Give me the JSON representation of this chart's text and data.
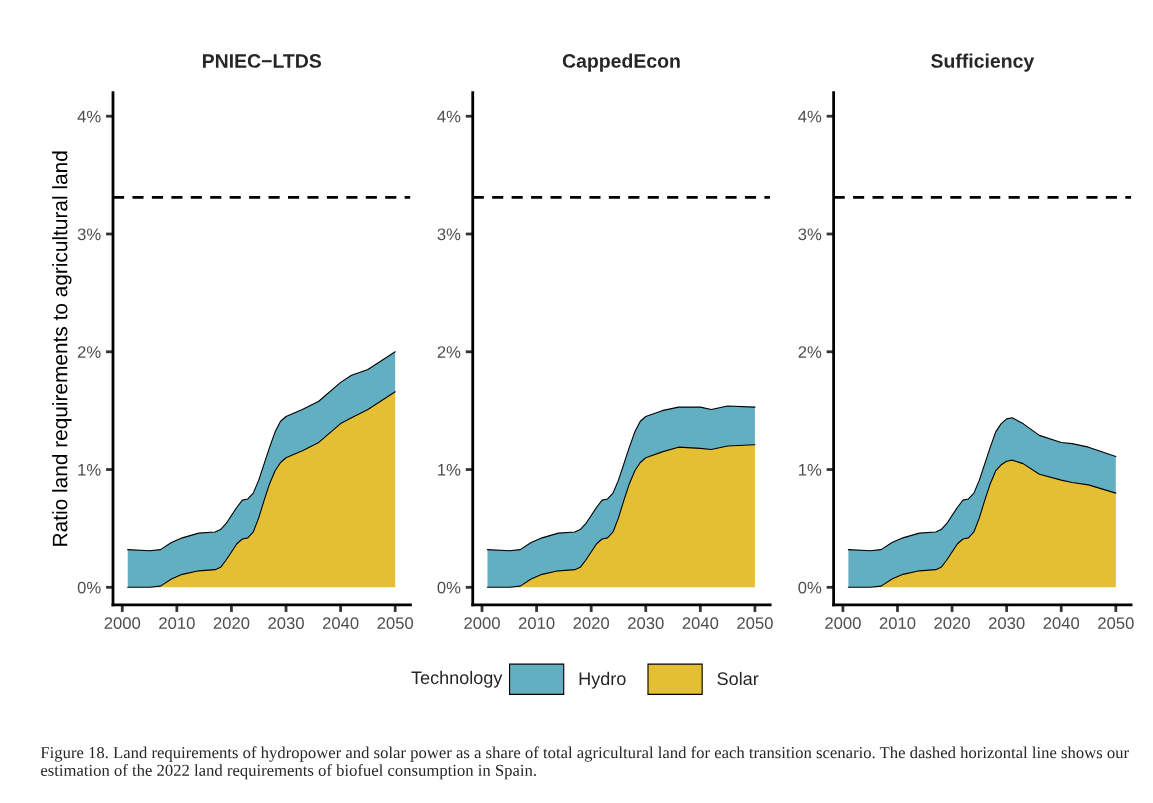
{
  "chart_data": [
    {
      "type": "area",
      "stacked": true,
      "title": "PNIEC−LTDS",
      "ylabel": "Ratio land requirements to agricultural land",
      "legend": "bottom",
      "legend_title": "Technology",
      "grid": false,
      "tick_labels": true,
      "x": [
        2001,
        2005,
        2007,
        2009,
        2011,
        2014,
        2017,
        2018,
        2019,
        2021,
        2022,
        2023,
        2024,
        2025,
        2026,
        2027,
        2028,
        2029,
        2030,
        2033,
        2036,
        2040,
        2042,
        2045,
        2050
      ],
      "series": [
        {
          "name": "Solar",
          "color": "#e5bf33",
          "values": [
            0,
            0,
            0.01,
            0.07,
            0.11,
            0.14,
            0.15,
            0.17,
            0.23,
            0.37,
            0.41,
            0.42,
            0.47,
            0.59,
            0.74,
            0.88,
            0.99,
            1.06,
            1.1,
            1.16,
            1.23,
            1.39,
            1.44,
            1.51,
            1.66
          ]
        },
        {
          "name": "Hydro",
          "color": "#62afc1",
          "values": [
            0.32,
            0.31,
            0.31,
            0.31,
            0.31,
            0.32,
            0.32,
            0.32,
            0.31,
            0.31,
            0.33,
            0.33,
            0.33,
            0.32,
            0.31,
            0.31,
            0.33,
            0.35,
            0.35,
            0.35,
            0.35,
            0.35,
            0.36,
            0.34,
            0.34
          ]
        }
      ],
      "xlim": [
        1998.3,
        2052.8
      ],
      "xticks": [
        2000,
        2010,
        2020,
        2030,
        2040,
        2050
      ],
      "ylim": [
        -0.15,
        4.2
      ],
      "yticks": [
        {
          "value": 0,
          "label": "0%"
        },
        {
          "value": 1,
          "label": "1%"
        },
        {
          "value": 2,
          "label": "2%"
        },
        {
          "value": 3,
          "label": "3%"
        },
        {
          "value": 4,
          "label": "4%"
        }
      ],
      "ref_lines": [
        {
          "axis": "y",
          "value": 3.31,
          "line_style": "dashed",
          "color": "#000000"
        }
      ],
      "annotations": [
        "Figure 18. Land requirements of hydropower and solar power as a share of total agricultural land for each transition scenario. The dashed horizontal line shows our estimation of the 2022 land requirements of biofuel consumption in Spain."
      ]
    },
    {
      "type": "area",
      "stacked": true,
      "title": "CappedEcon",
      "grid": false,
      "x": [
        2001,
        2005,
        2007,
        2009,
        2011,
        2014,
        2017,
        2018,
        2019,
        2021,
        2022,
        2023,
        2024,
        2025,
        2026,
        2027,
        2028,
        2029,
        2030,
        2033,
        2036,
        2040,
        2042,
        2045,
        2050
      ],
      "series": [
        {
          "color": "#e5bf33",
          "values": [
            0,
            0,
            0.01,
            0.07,
            0.11,
            0.14,
            0.15,
            0.17,
            0.23,
            0.37,
            0.41,
            0.42,
            0.47,
            0.59,
            0.74,
            0.88,
            0.99,
            1.06,
            1.1,
            1.15,
            1.19,
            1.18,
            1.17,
            1.2,
            1.21
          ]
        },
        {
          "color": "#62afc1",
          "values": [
            0.32,
            0.31,
            0.31,
            0.31,
            0.31,
            0.32,
            0.32,
            0.32,
            0.31,
            0.31,
            0.33,
            0.33,
            0.33,
            0.32,
            0.31,
            0.31,
            0.33,
            0.35,
            0.35,
            0.35,
            0.34,
            0.35,
            0.34,
            0.34,
            0.32
          ]
        }
      ],
      "xlim": [
        1998.3,
        2052.8
      ],
      "xticks": [
        2000,
        2010,
        2020,
        2030,
        2040,
        2050
      ],
      "ylim": [
        -0.15,
        4.2
      ],
      "yticks": [
        {
          "value": 0,
          "label": "0%"
        },
        {
          "value": 1,
          "label": "1%"
        },
        {
          "value": 2,
          "label": "2%"
        },
        {
          "value": 3,
          "label": "3%"
        },
        {
          "value": 4,
          "label": "4%"
        }
      ],
      "ref_lines": [
        {
          "axis": "y",
          "value": 3.31,
          "line_style": "dashed",
          "color": "#000000"
        }
      ]
    },
    {
      "type": "area",
      "stacked": true,
      "title": "Sufficiency",
      "grid": false,
      "x": [
        2001,
        2005,
        2007,
        2009,
        2011,
        2014,
        2017,
        2018,
        2019,
        2021,
        2022,
        2023,
        2024,
        2025,
        2026,
        2027,
        2028,
        2029,
        2030,
        2031,
        2033,
        2036,
        2040,
        2042,
        2045,
        2050
      ],
      "series": [
        {
          "color": "#e5bf33",
          "values": [
            0,
            0,
            0.01,
            0.07,
            0.11,
            0.14,
            0.15,
            0.17,
            0.23,
            0.37,
            0.41,
            0.42,
            0.47,
            0.59,
            0.74,
            0.88,
            0.99,
            1.04,
            1.07,
            1.08,
            1.05,
            0.96,
            0.91,
            0.89,
            0.87,
            0.8
          ]
        },
        {
          "color": "#62afc1",
          "values": [
            0.32,
            0.31,
            0.31,
            0.31,
            0.31,
            0.32,
            0.32,
            0.32,
            0.31,
            0.31,
            0.33,
            0.33,
            0.33,
            0.32,
            0.31,
            0.31,
            0.33,
            0.35,
            0.36,
            0.36,
            0.34,
            0.33,
            0.32,
            0.33,
            0.32,
            0.31
          ]
        }
      ],
      "xlim": [
        1998.3,
        2052.8
      ],
      "xticks": [
        2000,
        2010,
        2020,
        2030,
        2040,
        2050
      ],
      "ylim": [
        -0.15,
        4.2
      ],
      "yticks": [
        {
          "value": 0,
          "label": "0%"
        },
        {
          "value": 1,
          "label": "1%"
        },
        {
          "value": 2,
          "label": "2%"
        },
        {
          "value": 3,
          "label": "3%"
        },
        {
          "value": 4,
          "label": "4%"
        }
      ],
      "ref_lines": [
        {
          "axis": "y",
          "value": 3.31,
          "line_style": "dashed",
          "color": "#000000"
        }
      ]
    }
  ]
}
